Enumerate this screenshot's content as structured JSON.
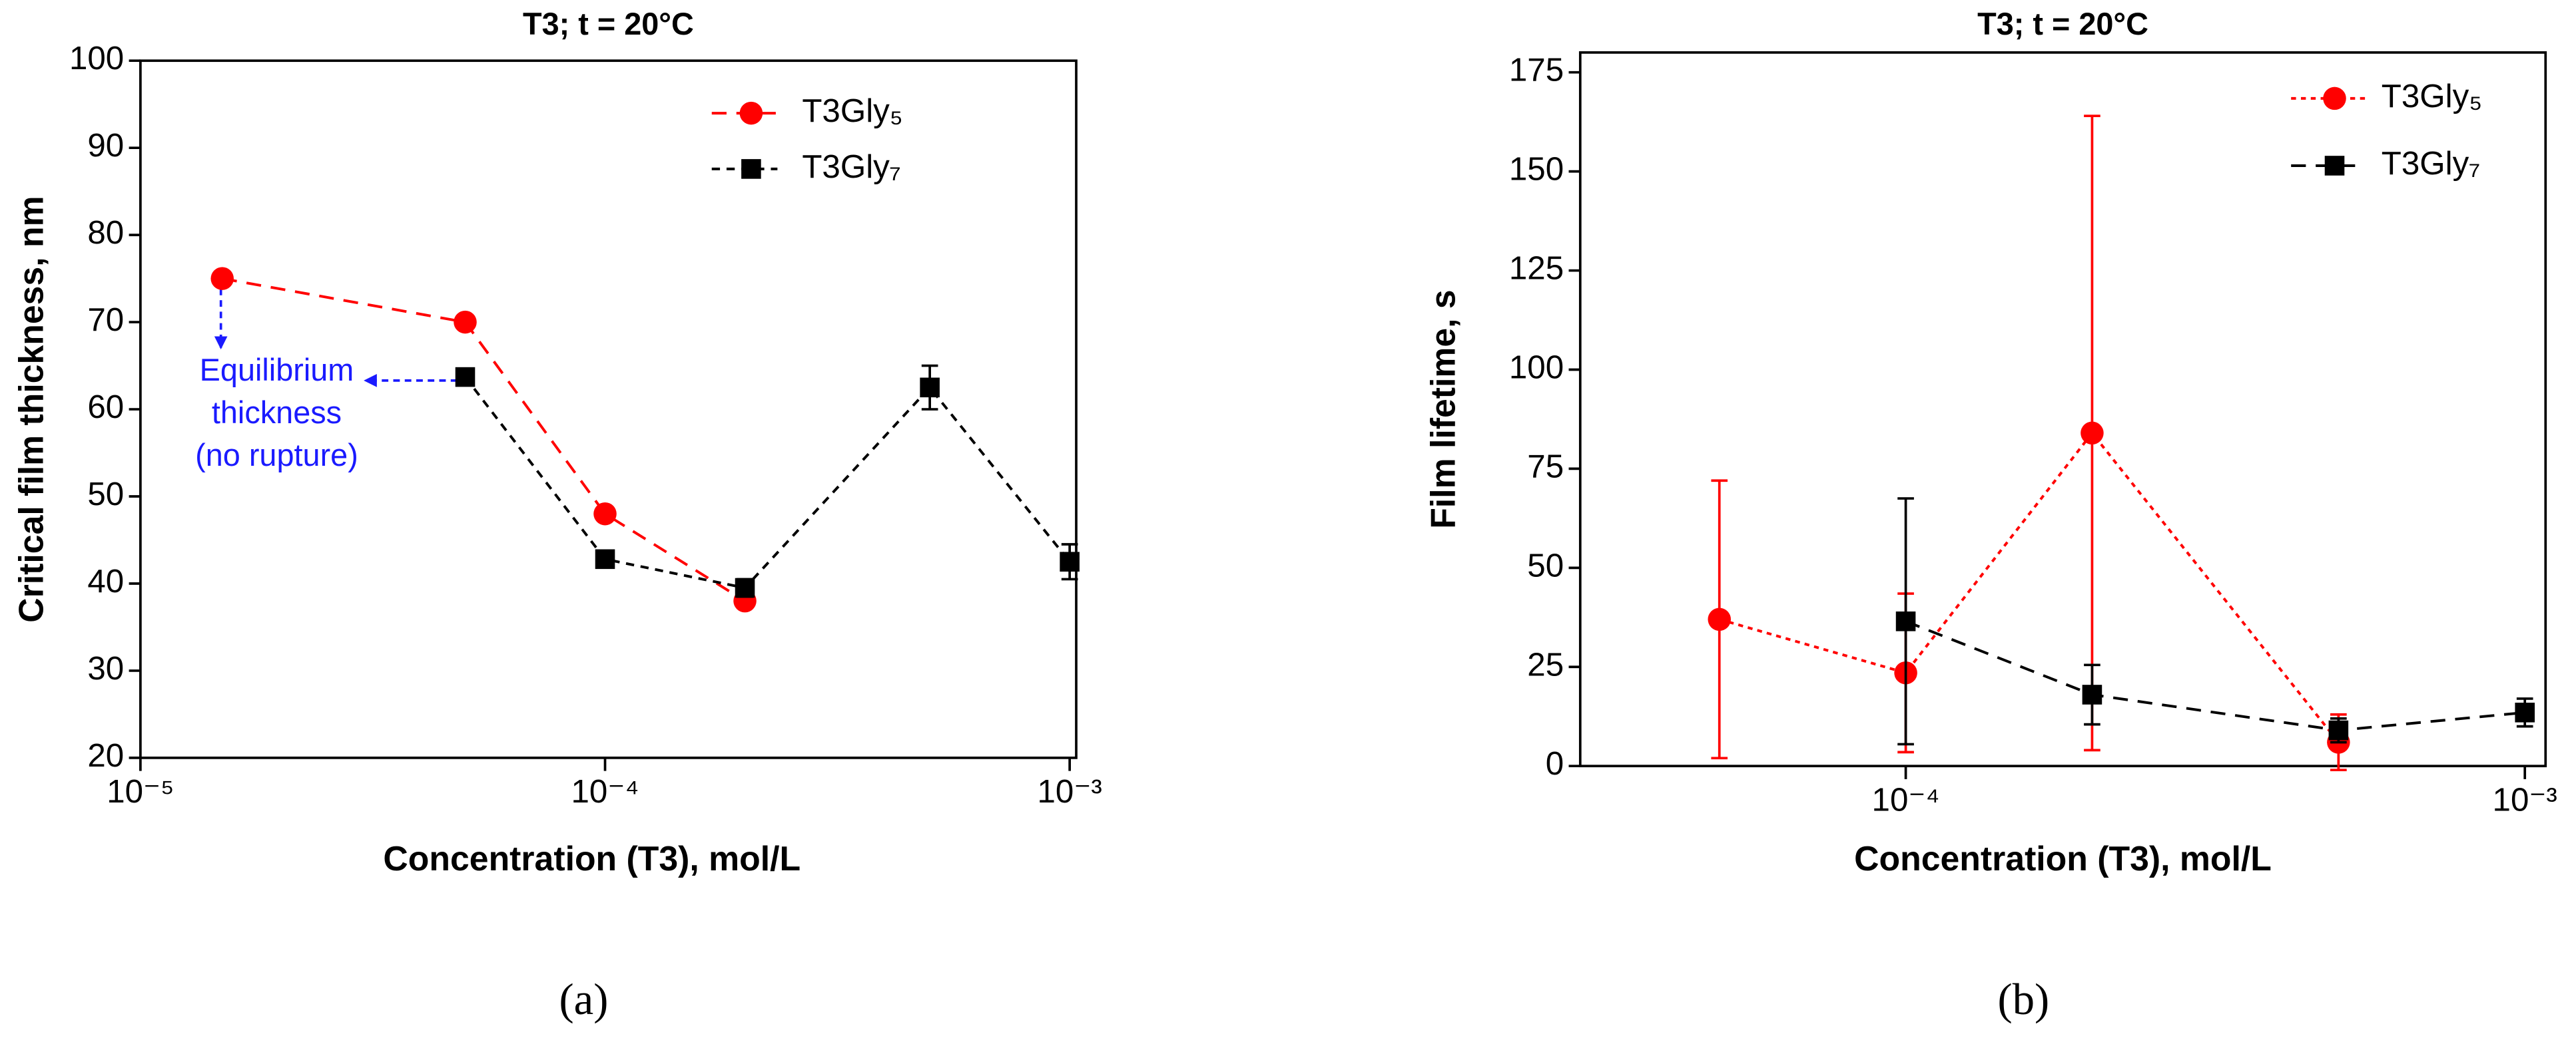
{
  "chart_data": [
    {
      "type": "scatter",
      "title": "T3; t = 20°C",
      "panel_label": "(a)",
      "x_label": "Concentration (T3), mol/L",
      "y_label": "Critical film thickness, nm",
      "xscale": "log",
      "xlim": [
        1e-05,
        0.001033
      ],
      "ylim": [
        20,
        100
      ],
      "xticks": [
        {
          "value": 1e-05,
          "label": "10⁻⁵"
        },
        {
          "value": 0.0001,
          "label": "10⁻⁴"
        },
        {
          "value": 0.001,
          "label": "10⁻³"
        }
      ],
      "yticks": [
        20,
        30,
        40,
        50,
        60,
        70,
        80,
        90,
        100
      ],
      "legend": "upper right",
      "annotation": [
        "Equilibrium",
        "thickness",
        "(no rupture)"
      ],
      "series": [
        {
          "name": "T3Gly₅",
          "color": "#ff0000",
          "marker": "circle",
          "line_style": "dashed",
          "x": [
            1.5e-05,
            5e-05,
            0.0001,
            0.0002
          ],
          "values": [
            75,
            70,
            48,
            38
          ]
        },
        {
          "name": "T3Gly₇",
          "color": "#000000",
          "marker": "square",
          "line_style": "short-dashed",
          "x": [
            5e-05,
            0.0001,
            0.0002,
            0.0005,
            0.001
          ],
          "values": [
            63.7,
            42.8,
            39.5,
            62.5,
            42.5
          ],
          "errors": [
            0.8,
            0.8,
            1,
            2.5,
            2
          ]
        }
      ]
    },
    {
      "type": "scatter",
      "title": "T3; t = 20°C",
      "panel_label": "(b)",
      "x_label": "Concentration (T3), mol/L",
      "y_label": "Film lifetime, s",
      "xscale": "log",
      "xlim": [
        2.98e-05,
        0.00108
      ],
      "ylim": [
        0,
        180
      ],
      "xticks": [
        {
          "value": 0.0001,
          "label": "10⁻⁴"
        },
        {
          "value": 0.001,
          "label": "10⁻³"
        }
      ],
      "yticks": [
        0,
        25,
        50,
        75,
        100,
        125,
        150,
        175
      ],
      "legend": "upper right",
      "series": [
        {
          "name": "T3Gly₅",
          "color": "#ff0000",
          "marker": "circle",
          "line_style": "dotted",
          "x": [
            5e-05,
            0.0001,
            0.0002,
            0.0005
          ],
          "values": [
            37,
            23.5,
            84,
            6
          ],
          "errors": [
            35,
            20,
            80,
            7
          ]
        },
        {
          "name": "T3Gly₇",
          "color": "#000000",
          "marker": "square",
          "line_style": "dashed",
          "x": [
            0.0001,
            0.0002,
            0.0005,
            0.001
          ],
          "values": [
            36.5,
            18,
            9,
            13.5
          ],
          "errors": [
            31,
            7.5,
            3,
            3.5
          ]
        }
      ]
    }
  ]
}
